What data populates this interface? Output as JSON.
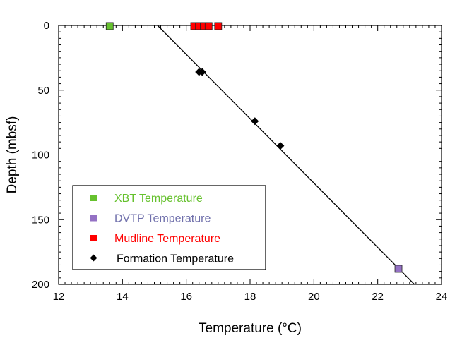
{
  "chart_data": {
    "type": "scatter",
    "title": "",
    "xlabel": "Temperature (°C)",
    "ylabel": "Depth (mbsf)",
    "xlim": [
      12,
      24
    ],
    "ylim": [
      200,
      0
    ],
    "y_inverted": true,
    "grid": false,
    "legend_placement": "bottom-left",
    "x_ticks": [
      "12",
      "14",
      "16",
      "18",
      "20",
      "22",
      "24"
    ],
    "y_ticks": [
      "0",
      "50",
      "100",
      "150",
      "200"
    ],
    "series": [
      {
        "name": "XBT Temperature",
        "marker": "square",
        "color": "#66c12e",
        "points": [
          {
            "x": 13.6,
            "y": 0.5
          }
        ]
      },
      {
        "name": "DVTP Temperature",
        "marker": "square",
        "color": "#9471c4",
        "points": [
          {
            "x": 22.65,
            "y": 188
          }
        ]
      },
      {
        "name": "Mudline Temperature",
        "marker": "square",
        "color": "#ff0000",
        "points": [
          {
            "x": 16.25,
            "y": 0.5
          },
          {
            "x": 16.4,
            "y": 0.5
          },
          {
            "x": 16.55,
            "y": 0.5
          },
          {
            "x": 16.7,
            "y": 0.5
          },
          {
            "x": 17.0,
            "y": 0.5
          }
        ]
      },
      {
        "name": "Formation Temperature",
        "marker": "diamond",
        "color": "#000000",
        "points": [
          {
            "x": 16.4,
            "y": 36
          },
          {
            "x": 16.5,
            "y": 36
          },
          {
            "x": 18.15,
            "y": 74
          },
          {
            "x": 18.95,
            "y": 93
          }
        ]
      }
    ],
    "fit_line": {
      "color": "#000000",
      "points": [
        {
          "x": 15.1,
          "y": 0
        },
        {
          "x": 23.15,
          "y": 200
        }
      ]
    },
    "legend_text_colors": [
      "#66c12e",
      "#6f6fab",
      "#ff0000",
      "#000000"
    ]
  }
}
